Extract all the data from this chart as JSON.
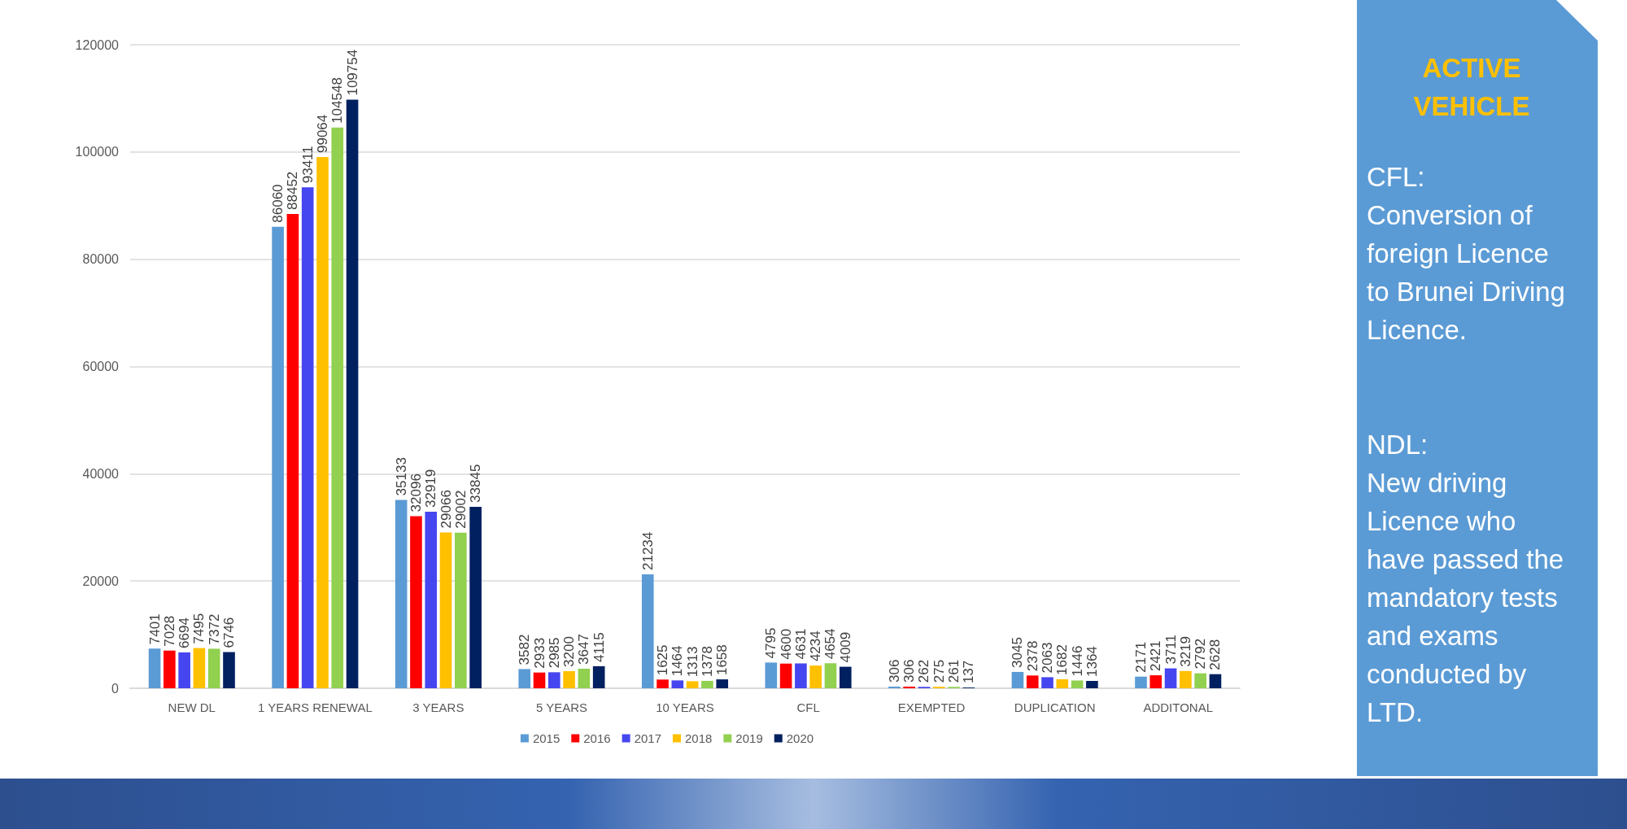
{
  "chart_data": {
    "type": "bar",
    "categories": [
      "NEW DL",
      "1 YEARS RENEWAL",
      "3 YEARS",
      "5 YEARS",
      "10 YEARS",
      "CFL",
      "EXEMPTED",
      "DUPLICATION",
      "ADDITONAL"
    ],
    "series": [
      {
        "name": "2015",
        "color": "#5b9bd5",
        "values": [
          7401,
          86060,
          35133,
          3582,
          21234,
          4795,
          306,
          3045,
          2171
        ]
      },
      {
        "name": "2016",
        "color": "#ff0000",
        "values": [
          7028,
          88452,
          32096,
          2933,
          1625,
          4600,
          306,
          2378,
          2421
        ]
      },
      {
        "name": "2017",
        "color": "#4646f0",
        "values": [
          6694,
          93411,
          32919,
          2985,
          1464,
          4631,
          262,
          2063,
          3711
        ]
      },
      {
        "name": "2018",
        "color": "#ffc000",
        "values": [
          7495,
          99064,
          29066,
          3200,
          1313,
          4234,
          275,
          1682,
          3219
        ]
      },
      {
        "name": "2019",
        "color": "#92d050",
        "values": [
          7372,
          104548,
          29002,
          3647,
          1378,
          4654,
          261,
          1446,
          2792
        ]
      },
      {
        "name": "2020",
        "color": "#002060",
        "values": [
          6746,
          109754,
          33845,
          4115,
          1658,
          4009,
          137,
          1364,
          2628
        ]
      }
    ],
    "ylim": [
      0,
      120000
    ],
    "yticks": [
      0,
      20000,
      40000,
      60000,
      80000,
      100000,
      120000
    ],
    "grid": "y",
    "legend": "bottom",
    "data_labels": true,
    "annotations": [
      "ACTIVE VEHICLE",
      "CFL:",
      "Conversion of foreign Licence to Brunei Driving Licence.",
      "NDL:",
      "New driving Licence  who have passed the mandatory tests and exams conducted by LTD."
    ]
  }
}
